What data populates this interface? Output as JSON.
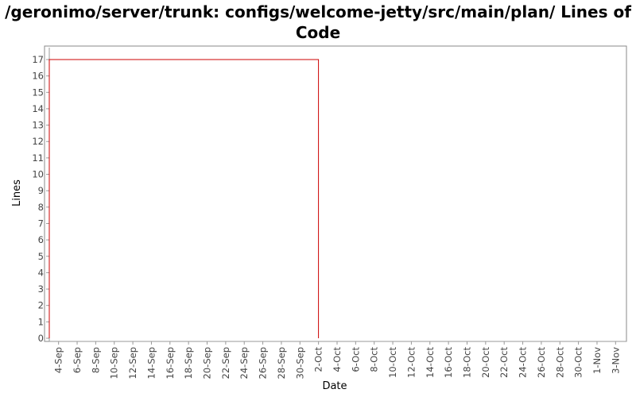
{
  "chart_data": {
    "type": "line",
    "title_line1": "/geronimo/server/trunk: configs/welcome-jetty/src/main/plan/ Lines of",
    "title_line2": "Code",
    "xlabel": "Date",
    "ylabel": "Lines",
    "ylim": [
      0,
      17
    ],
    "yticks": [
      0,
      1,
      2,
      3,
      4,
      5,
      6,
      7,
      8,
      9,
      10,
      11,
      12,
      13,
      14,
      15,
      16,
      17
    ],
    "xlim": [
      "2008-09-03",
      "2008-11-04"
    ],
    "xticks": [
      {
        "date": "2008-09-04",
        "label": "4-Sep"
      },
      {
        "date": "2008-09-06",
        "label": "6-Sep"
      },
      {
        "date": "2008-09-08",
        "label": "8-Sep"
      },
      {
        "date": "2008-09-10",
        "label": "10-Sep"
      },
      {
        "date": "2008-09-12",
        "label": "12-Sep"
      },
      {
        "date": "2008-09-14",
        "label": "14-Sep"
      },
      {
        "date": "2008-09-16",
        "label": "16-Sep"
      },
      {
        "date": "2008-09-18",
        "label": "18-Sep"
      },
      {
        "date": "2008-09-20",
        "label": "20-Sep"
      },
      {
        "date": "2008-09-22",
        "label": "22-Sep"
      },
      {
        "date": "2008-09-24",
        "label": "24-Sep"
      },
      {
        "date": "2008-09-26",
        "label": "26-Sep"
      },
      {
        "date": "2008-09-28",
        "label": "28-Sep"
      },
      {
        "date": "2008-09-30",
        "label": "30-Sep"
      },
      {
        "date": "2008-10-02",
        "label": "2-Oct"
      },
      {
        "date": "2008-10-04",
        "label": "4-Oct"
      },
      {
        "date": "2008-10-06",
        "label": "6-Oct"
      },
      {
        "date": "2008-10-08",
        "label": "8-Oct"
      },
      {
        "date": "2008-10-10",
        "label": "10-Oct"
      },
      {
        "date": "2008-10-12",
        "label": "12-Oct"
      },
      {
        "date": "2008-10-14",
        "label": "14-Oct"
      },
      {
        "date": "2008-10-16",
        "label": "16-Oct"
      },
      {
        "date": "2008-10-18",
        "label": "18-Oct"
      },
      {
        "date": "2008-10-20",
        "label": "20-Oct"
      },
      {
        "date": "2008-10-22",
        "label": "22-Oct"
      },
      {
        "date": "2008-10-24",
        "label": "24-Oct"
      },
      {
        "date": "2008-10-26",
        "label": "26-Oct"
      },
      {
        "date": "2008-10-28",
        "label": "28-Oct"
      },
      {
        "date": "2008-10-30",
        "label": "30-Oct"
      },
      {
        "date": "2008-11-01",
        "label": "1-Nov"
      },
      {
        "date": "2008-11-03",
        "label": "3-Nov"
      }
    ],
    "series": [
      {
        "color": "#cc0000",
        "points": [
          {
            "x": "2008-09-03",
            "y": 0
          },
          {
            "x": "2008-09-03",
            "y": 17
          },
          {
            "x": "2008-10-02",
            "y": 17
          },
          {
            "x": "2008-10-02",
            "y": 0
          }
        ]
      }
    ],
    "grid": false,
    "legend": "none"
  }
}
